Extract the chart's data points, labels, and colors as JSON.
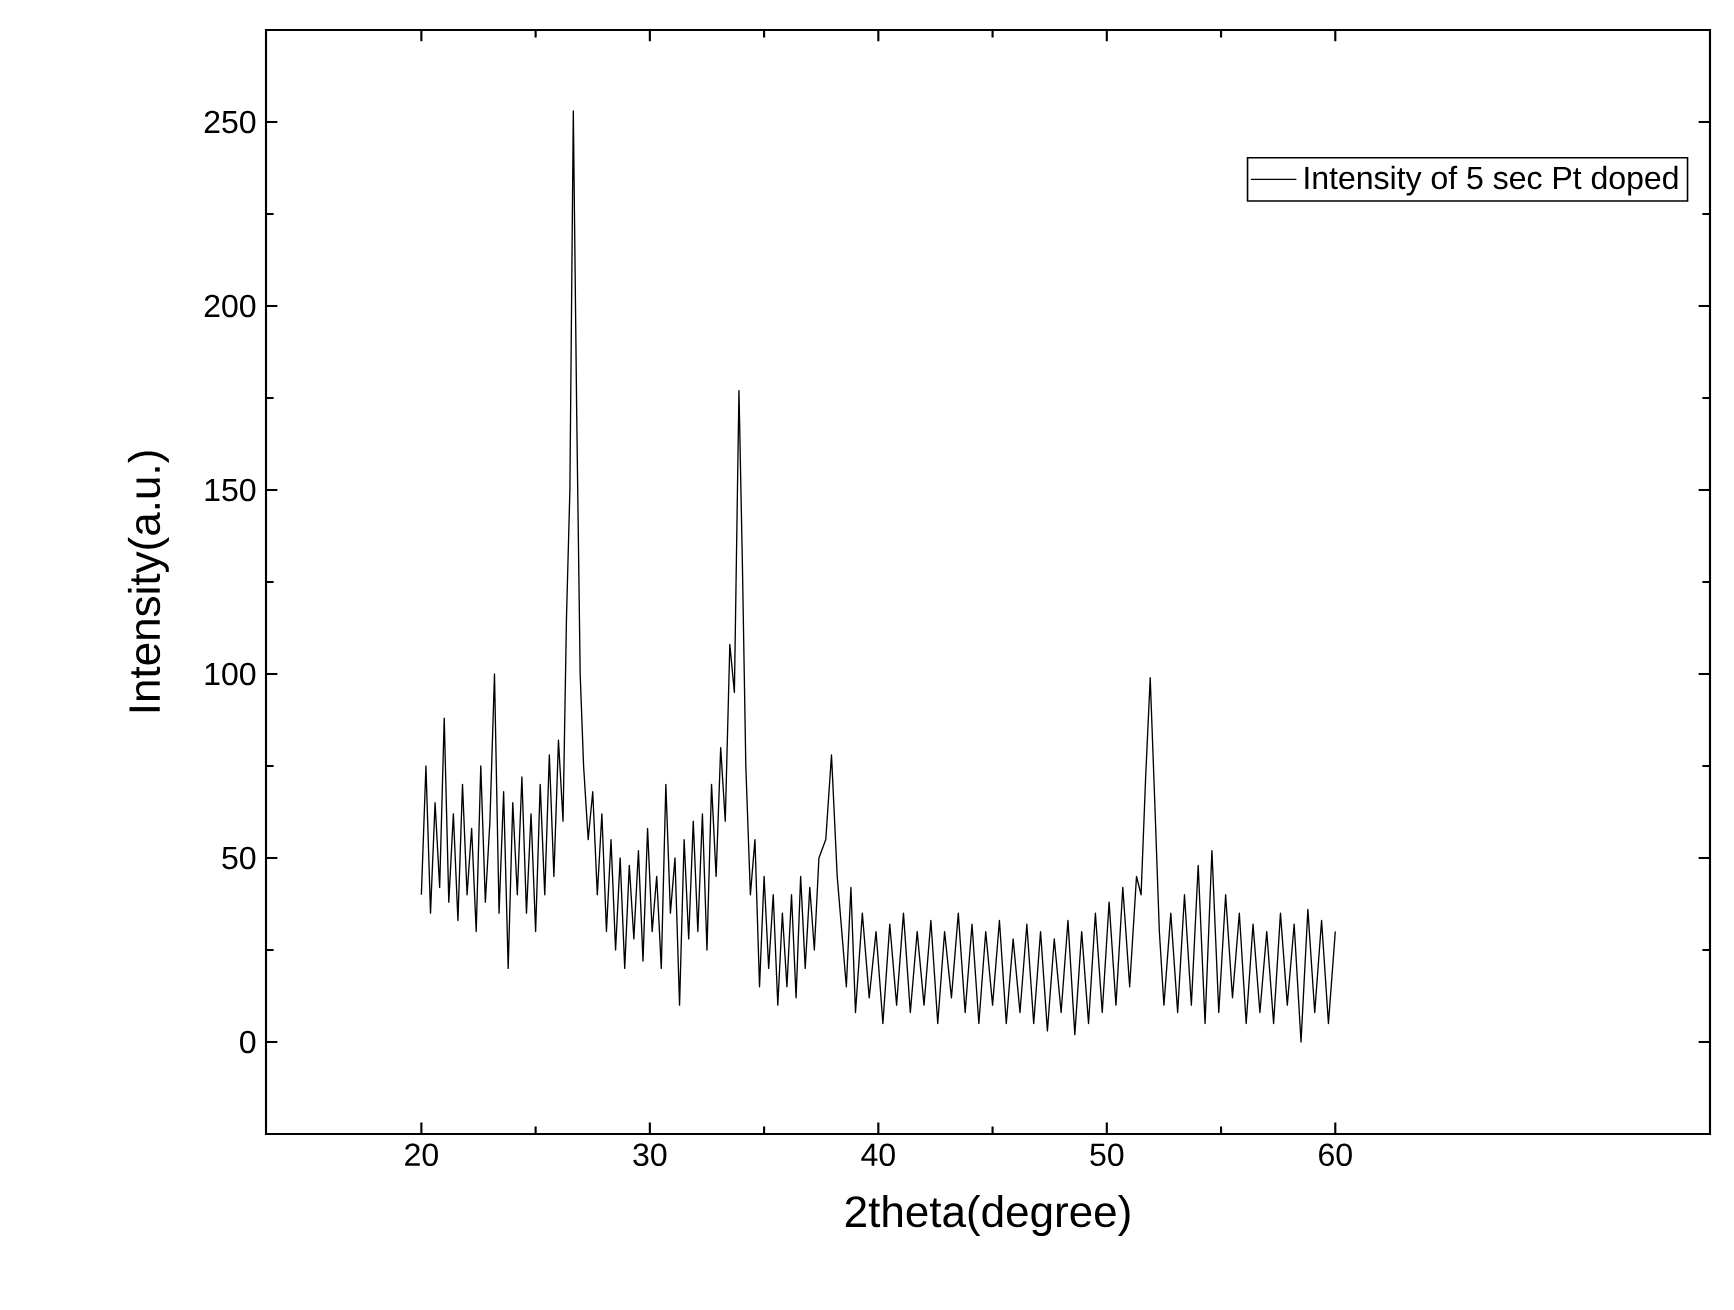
{
  "chart_data": {
    "type": "line",
    "xlabel": "2theta(degree)",
    "ylabel": "Intensity(a.u.)",
    "xlim": [
      13.2,
      76.4
    ],
    "ylim": [
      -25,
      275
    ],
    "xticks": [
      20,
      30,
      40,
      50,
      60
    ],
    "yticks": [
      0,
      50,
      100,
      150,
      200,
      250
    ],
    "legend": "top right",
    "grid": false,
    "series": [
      {
        "name": "Intensity of 5 sec Pt doped",
        "color": "#000000",
        "x": [
          20.0,
          20.2,
          20.4,
          20.6,
          20.8,
          21.0,
          21.2,
          21.4,
          21.6,
          21.8,
          22.0,
          22.2,
          22.4,
          22.6,
          22.8,
          23.0,
          23.2,
          23.4,
          23.6,
          23.8,
          24.0,
          24.2,
          24.4,
          24.6,
          24.8,
          25.0,
          25.2,
          25.4,
          25.6,
          25.8,
          26.0,
          26.2,
          26.35,
          26.5,
          26.65,
          26.8,
          26.95,
          27.1,
          27.3,
          27.5,
          27.7,
          27.9,
          28.1,
          28.3,
          28.5,
          28.7,
          28.9,
          29.1,
          29.3,
          29.5,
          29.7,
          29.9,
          30.1,
          30.3,
          30.5,
          30.7,
          30.9,
          31.1,
          31.3,
          31.5,
          31.7,
          31.9,
          32.1,
          32.3,
          32.5,
          32.7,
          32.9,
          33.1,
          33.3,
          33.5,
          33.7,
          33.9,
          34.05,
          34.2,
          34.4,
          34.6,
          34.8,
          35.0,
          35.2,
          35.4,
          35.6,
          35.8,
          36.0,
          36.2,
          36.4,
          36.6,
          36.8,
          37.0,
          37.2,
          37.4,
          37.7,
          37.95,
          38.2,
          38.4,
          38.6,
          38.8,
          39.0,
          39.3,
          39.6,
          39.9,
          40.2,
          40.5,
          40.8,
          41.1,
          41.4,
          41.7,
          42.0,
          42.3,
          42.6,
          42.9,
          43.2,
          43.5,
          43.8,
          44.1,
          44.4,
          44.7,
          45.0,
          45.3,
          45.6,
          45.9,
          46.2,
          46.5,
          46.8,
          47.1,
          47.4,
          47.7,
          48.0,
          48.3,
          48.6,
          48.9,
          49.2,
          49.5,
          49.8,
          50.1,
          50.4,
          50.7,
          51.0,
          51.3,
          51.5,
          51.7,
          51.9,
          52.1,
          52.3,
          52.5,
          52.8,
          53.1,
          53.4,
          53.7,
          54.0,
          54.3,
          54.6,
          54.9,
          55.2,
          55.5,
          55.8,
          56.1,
          56.4,
          56.7,
          57.0,
          57.3,
          57.6,
          57.9,
          58.2,
          58.5,
          58.8,
          59.1,
          59.4,
          59.7,
          60.0
        ],
        "values": [
          40,
          75,
          35,
          65,
          42,
          88,
          38,
          62,
          33,
          70,
          40,
          58,
          30,
          75,
          38,
          60,
          100,
          35,
          68,
          20,
          65,
          40,
          72,
          35,
          62,
          30,
          70,
          40,
          78,
          45,
          82,
          60,
          115,
          150,
          253,
          170,
          100,
          75,
          55,
          68,
          40,
          62,
          30,
          55,
          25,
          50,
          20,
          48,
          28,
          52,
          22,
          58,
          30,
          45,
          20,
          70,
          35,
          50,
          10,
          55,
          28,
          60,
          30,
          62,
          25,
          70,
          45,
          80,
          60,
          108,
          95,
          177,
          130,
          75,
          40,
          55,
          15,
          45,
          20,
          40,
          10,
          35,
          15,
          40,
          12,
          45,
          20,
          42,
          25,
          50,
          55,
          78,
          45,
          30,
          15,
          42,
          8,
          35,
          12,
          30,
          5,
          32,
          10,
          35,
          8,
          30,
          10,
          33,
          5,
          30,
          12,
          35,
          8,
          32,
          5,
          30,
          10,
          33,
          5,
          28,
          8,
          32,
          5,
          30,
          3,
          28,
          8,
          33,
          2,
          30,
          5,
          35,
          8,
          38,
          10,
          42,
          15,
          45,
          40,
          72,
          99,
          65,
          30,
          10,
          35,
          8,
          40,
          10,
          48,
          5,
          52,
          8,
          40,
          12,
          35,
          5,
          32,
          8,
          30,
          5,
          35,
          10,
          32,
          0,
          36,
          8,
          33,
          5,
          30
        ]
      }
    ]
  }
}
